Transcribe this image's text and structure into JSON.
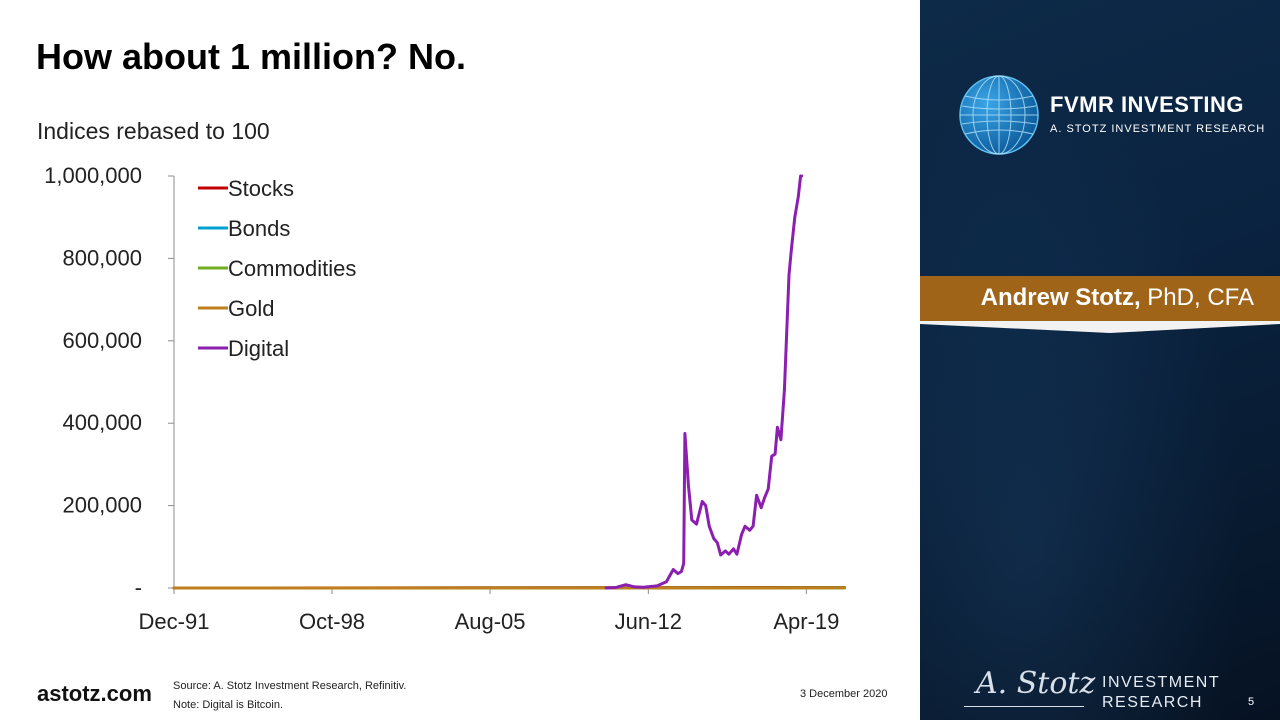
{
  "slide": {
    "title": "How about 1 million? No.",
    "subtitle": "Indices rebased to 100",
    "site": "astotz.com",
    "source": "Source: A. Stotz Investment Research, Refinitiv.",
    "note": "Note: Digital is Bitcoin.",
    "date": "3 December 2020",
    "page_number": "5"
  },
  "sidebar": {
    "brand": "FVMR INVESTING",
    "brand_sub": "A. STOTZ INVESTMENT RESEARCH",
    "name": "Andrew Stotz,",
    "credentials": " PhD, CFA",
    "signature": "A. Stotz",
    "ir_line1": "INVESTMENT",
    "ir_line2": "RESEARCH",
    "colors": {
      "panel": "#0a2340",
      "accent": "#a06418"
    },
    "icons": [
      "globe-icon"
    ]
  },
  "chart_data": {
    "type": "line",
    "ylabel": "",
    "xlabel": "",
    "ylim": [
      0,
      1000000
    ],
    "yticks": [
      0,
      200000,
      400000,
      600000,
      800000,
      1000000
    ],
    "ytick_labels": [
      "-",
      "200,000",
      "400,000",
      "600,000",
      "800,000",
      "1,000,000"
    ],
    "xlim": [
      1991.92,
      2020.92
    ],
    "xticks": [
      1991.92,
      1998.75,
      2005.58,
      2012.42,
      2019.25
    ],
    "xtick_labels": [
      "Dec-91",
      "Oct-98",
      "Aug-05",
      "Jun-12",
      "Apr-19"
    ],
    "legend_position": "top-left",
    "series": [
      {
        "name": "Stocks",
        "color": "#c00000",
        "x": [
          1991.92,
          2020.9
        ],
        "y": [
          100,
          1200
        ]
      },
      {
        "name": "Bonds",
        "color": "#00a0d0",
        "x": [
          1991.92,
          2020.9
        ],
        "y": [
          100,
          600
        ]
      },
      {
        "name": "Commodities",
        "color": "#70ad20",
        "x": [
          1991.92,
          2020.9
        ],
        "y": [
          100,
          300
        ]
      },
      {
        "name": "Gold",
        "color": "#bf7f1c",
        "x": [
          1991.92,
          2020.9
        ],
        "y": [
          100,
          600
        ]
      },
      {
        "name": "Digital",
        "color": "#8b1fb0",
        "x": [
          2010.6,
          2011.0,
          2011.45,
          2011.8,
          2012.2,
          2012.8,
          2013.2,
          2013.35,
          2013.5,
          2013.7,
          2013.85,
          2013.9,
          2013.95,
          2014.0,
          2014.15,
          2014.3,
          2014.5,
          2014.75,
          2014.9,
          2015.05,
          2015.25,
          2015.4,
          2015.55,
          2015.75,
          2015.9,
          2016.1,
          2016.25,
          2016.45,
          2016.6,
          2016.8,
          2016.95,
          2017.1,
          2017.3,
          2017.45,
          2017.6,
          2017.75,
          2017.9,
          2018.0,
          2018.15,
          2018.3,
          2018.4,
          2018.5,
          2018.6,
          2018.75,
          2018.9,
          2019.0,
          2019.05
        ],
        "y": [
          0,
          1000,
          8000,
          3000,
          2000,
          5000,
          15000,
          30000,
          45000,
          35000,
          40000,
          50000,
          60000,
          375000,
          250000,
          165000,
          155000,
          210000,
          200000,
          150000,
          120000,
          110000,
          80000,
          90000,
          82000,
          95000,
          82000,
          130000,
          150000,
          140000,
          150000,
          225000,
          195000,
          220000,
          240000,
          320000,
          325000,
          390000,
          360000,
          480000,
          620000,
          760000,
          820000,
          900000,
          950000,
          1000000,
          1000000
        ]
      }
    ]
  }
}
